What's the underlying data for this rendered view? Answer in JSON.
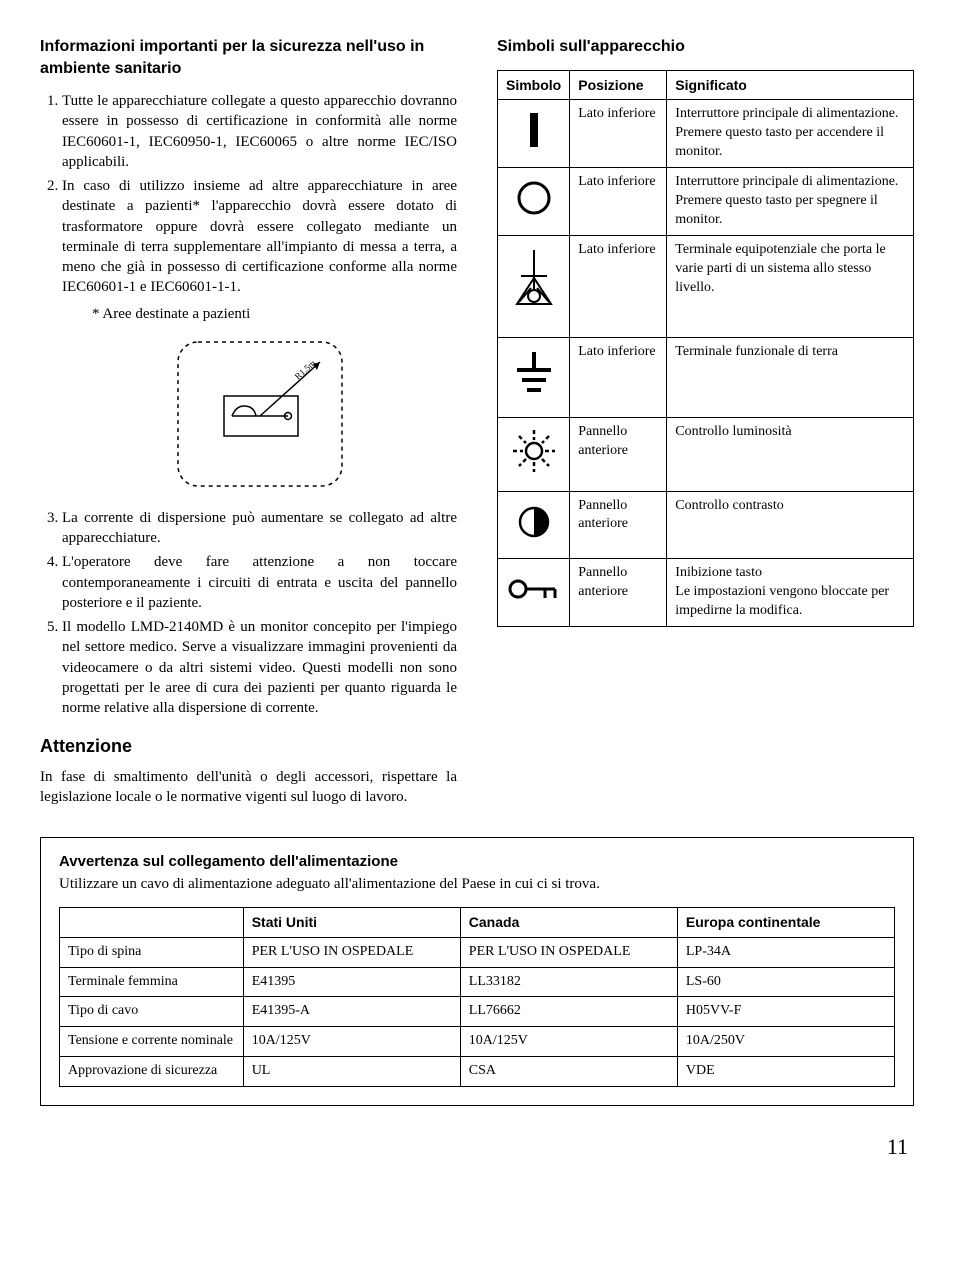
{
  "left": {
    "heading": "Informazioni importanti per la sicurezza nell'uso in ambiente sanitario",
    "list_items_a": [
      "Tutte le apparecchiature collegate a questo apparecchio dovranno essere in possesso di certificazione in conformità alle norme IEC60601-1, IEC60950-1, IEC60065 o altre norme IEC/ISO applicabili.",
      "In caso di utilizzo insieme ad altre apparecchiature in aree destinate a pazienti* l'apparecchio dovrà essere dotato di trasformatore oppure dovrà essere collegato mediante un terminale di terra supplementare all'impianto di messa a terra, a meno che già in possesso di certificazione conforme alla norme IEC60601-1 e IEC60601-1-1."
    ],
    "footnote": "* Aree destinate a pazienti",
    "diagram_label": "R1.5m",
    "list_items_b": [
      "La corrente di dispersione può aumentare se collegato ad altre apparecchiature.",
      "L'operatore deve fare attenzione a non toccare contemporaneamente i circuiti di entrata e uscita del pannello posteriore e il paziente.",
      "Il modello LMD-2140MD è un monitor concepito per l'impiego nel settore medico. Serve a visualizzare immagini provenienti da videocamere o da altri sistemi video. Questi modelli non sono progettati per le aree di cura dei pazienti per quanto riguarda le norme relative alla dispersione di corrente."
    ],
    "attn_heading": "Attenzione",
    "attn_body": "In fase di smaltimento dell'unità o degli accessori, rispettare la legislazione locale o le normative vigenti sul luogo di lavoro."
  },
  "right": {
    "heading": "Simboli sull'apparecchio",
    "table_headers": [
      "Simbolo",
      "Posizione",
      "Significato"
    ],
    "rows": [
      {
        "pos": "Lato inferiore",
        "meaning": "Interruttore principale di alimentazione.\nPremere questo tasto per accendere il monitor."
      },
      {
        "pos": "Lato inferiore",
        "meaning": "Interruttore principale di alimentazione.\nPremere questo tasto per spegnere il monitor."
      },
      {
        "pos": "Lato inferiore",
        "meaning": "Terminale equipotenziale che porta le varie parti di un sistema allo stesso livello."
      },
      {
        "pos": "Lato inferiore",
        "meaning": "Terminale funzionale di terra"
      },
      {
        "pos": "Pannello anteriore",
        "meaning": "Controllo luminosità"
      },
      {
        "pos": "Pannello anteriore",
        "meaning": "Controllo contrasto"
      },
      {
        "pos": "Pannello anteriore",
        "meaning": "Inibizione tasto\nLe impostazioni vengono bloccate per impedirne la modifica."
      }
    ]
  },
  "bottom": {
    "heading": "Avvertenza sul collegamento dell'alimentazione",
    "sub": "Utilizzare un cavo di alimentazione adeguato all'alimentazione del Paese in cui ci si trova.",
    "col_headers": [
      "",
      "Stati Uniti",
      "Canada",
      "Europa continentale"
    ],
    "rows": [
      [
        "Tipo di spina",
        "PER L'USO IN OSPEDALE",
        "PER L'USO IN OSPEDALE",
        "LP-34A"
      ],
      [
        "Terminale femmina",
        "E41395",
        "LL33182",
        "LS-60"
      ],
      [
        "Tipo di cavo",
        "E41395-A",
        "LL76662",
        "H05VV-F"
      ],
      [
        "Tensione e corrente nominale",
        "10A/125V",
        "10A/125V",
        "10A/250V"
      ],
      [
        "Approvazione di sicurezza",
        "UL",
        "CSA",
        "VDE"
      ]
    ]
  },
  "page_number": "11"
}
